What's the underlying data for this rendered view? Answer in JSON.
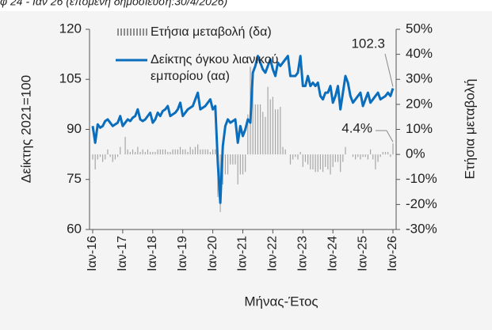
{
  "header_text": "φ 24 - Ιαν 26 (επόμενη δημοσίευση:30/4/2026)",
  "chart_data": {
    "type": "combo",
    "xlabel": "Μήνας-Έτος",
    "ylabel": "Δείκτης 2021=100",
    "y2label": "Ετήσια μεταβολή",
    "categories": [
      "Ιαν-16",
      null,
      null,
      null,
      null,
      null,
      null,
      null,
      null,
      null,
      null,
      null,
      "Ιαν-17",
      null,
      null,
      null,
      null,
      null,
      null,
      null,
      null,
      null,
      null,
      null,
      "Ιαν-18",
      null,
      null,
      null,
      null,
      null,
      null,
      null,
      null,
      null,
      null,
      null,
      "Ιαν-19",
      null,
      null,
      null,
      null,
      null,
      null,
      null,
      null,
      null,
      null,
      null,
      "Ιαν-20",
      null,
      null,
      null,
      null,
      null,
      null,
      null,
      null,
      null,
      null,
      null,
      "Ιαν-21",
      null,
      null,
      null,
      null,
      null,
      null,
      null,
      null,
      null,
      null,
      null,
      "Ιαν-22",
      null,
      null,
      null,
      null,
      null,
      null,
      null,
      null,
      null,
      null,
      null,
      "Ιαν-23",
      null,
      null,
      null,
      null,
      null,
      null,
      null,
      null,
      null,
      null,
      null,
      "Ιαν-24",
      null,
      null,
      null,
      null,
      null,
      null,
      null,
      null,
      null,
      null,
      null,
      "Ιαν-25",
      null,
      null,
      null,
      null,
      null,
      null,
      null,
      null,
      null,
      null,
      null,
      "Ιαν-26"
    ],
    "ylim": [
      60,
      120
    ],
    "yticks": [
      60,
      75,
      90,
      105,
      120
    ],
    "y2lim": [
      -30,
      50
    ],
    "y2ticks": [
      {
        "value": -30,
        "label": "-30%"
      },
      {
        "value": -20,
        "label": "-20%"
      },
      {
        "value": -10,
        "label": "-10%"
      },
      {
        "value": 0,
        "label": "0%"
      },
      {
        "value": 10,
        "label": "10%"
      },
      {
        "value": 20,
        "label": "20%"
      },
      {
        "value": 30,
        "label": "30%"
      },
      {
        "value": 40,
        "label": "40%"
      },
      {
        "value": 50,
        "label": "50%"
      }
    ],
    "series": [
      {
        "name": "Ετήσια μεταβολή (δα)",
        "type": "bar",
        "axis": "y2",
        "color": "#8c8c8c",
        "values": [
          -2,
          -6,
          -2,
          -1,
          -3,
          -2,
          2,
          -1,
          -3,
          -2,
          -1,
          3,
          0,
          7,
          2,
          1,
          2,
          1,
          3,
          1,
          2,
          1,
          2,
          1,
          1,
          1,
          2,
          2,
          2,
          2,
          1,
          1,
          2,
          2,
          2,
          3,
          2,
          2,
          1,
          3,
          2,
          3,
          4,
          2,
          2,
          2,
          2,
          1,
          2,
          2,
          -17,
          -23,
          -12,
          -8,
          -8,
          -4,
          -4,
          -4,
          -12,
          -8,
          -8,
          -7,
          16,
          35,
          26,
          20,
          20,
          20,
          17,
          15,
          27,
          22,
          23,
          18,
          18,
          19,
          3,
          2,
          0,
          -4,
          -2,
          -1,
          -2,
          1,
          -5,
          -3,
          -4,
          -6,
          -6,
          -7,
          -7,
          -6,
          -7,
          -5,
          -6,
          -8,
          -5,
          -3,
          -3,
          -7,
          -3,
          3,
          0,
          0,
          -1,
          -2,
          -1,
          -2,
          -1,
          -1,
          -2,
          2,
          -2,
          -6,
          -3,
          -1,
          1,
          1,
          1,
          -1,
          4.4
        ],
        "value_labels": [
          null,
          null,
          null,
          null,
          null,
          null,
          null,
          null,
          null,
          null,
          null,
          null,
          null,
          null,
          null,
          null,
          null,
          null,
          null,
          null,
          null,
          null,
          null,
          null,
          null,
          null,
          null,
          null,
          null,
          null,
          null,
          null,
          null,
          null,
          null,
          null,
          null,
          null,
          null,
          null,
          null,
          null,
          null,
          null,
          null,
          null,
          null,
          null,
          null,
          null,
          null,
          null,
          null,
          null,
          null,
          null,
          null,
          null,
          null,
          null,
          null,
          null,
          null,
          null,
          null,
          null,
          null,
          null,
          null,
          null,
          null,
          null,
          null,
          null,
          null,
          null,
          null,
          null,
          null,
          null,
          null,
          null,
          null,
          null,
          null,
          null,
          null,
          null,
          null,
          null,
          null,
          null,
          null,
          null,
          null,
          null,
          null,
          null,
          null,
          null,
          null,
          null,
          null,
          null,
          null,
          null,
          null,
          null,
          null,
          null,
          null,
          null,
          null,
          null,
          null,
          null,
          null,
          null,
          null,
          null,
          "4.4%"
        ]
      },
      {
        "name": "Δείκτης όγκου λιανικού εμπορίου (αα)",
        "type": "line",
        "axis": "y",
        "color": "#0a6ebd",
        "values": [
          91,
          86,
          91.5,
          90.5,
          91,
          92.5,
          93,
          92,
          91,
          91.5,
          92,
          94,
          91,
          92,
          93,
          92.5,
          93.5,
          94,
          96,
          93,
          92.5,
          93,
          94,
          95,
          92,
          93,
          95,
          94,
          95.5,
          96,
          97,
          94,
          94.5,
          95,
          96,
          98,
          94,
          95,
          96,
          96.5,
          97,
          99,
          101,
          96,
          96.5,
          97,
          98,
          99,
          96,
          97,
          80,
          68,
          85,
          91,
          93,
          92,
          92.5,
          93,
          86,
          91,
          88,
          90,
          93,
          92,
          107,
          109,
          112,
          110,
          108,
          107,
          109,
          111,
          108,
          106,
          110,
          109,
          110,
          111,
          112,
          106,
          106,
          106,
          107,
          112,
          103,
          103,
          106,
          103,
          104,
          103,
          104,
          100,
          99,
          101,
          101,
          103,
          98,
          100,
          103,
          96,
          101,
          106,
          104,
          100,
          98,
          99,
          100,
          101,
          97,
          99,
          101,
          98,
          99,
          100,
          101,
          99,
          99.5,
          100,
          101,
          100,
          102.3
        ]
      }
    ]
  }
}
